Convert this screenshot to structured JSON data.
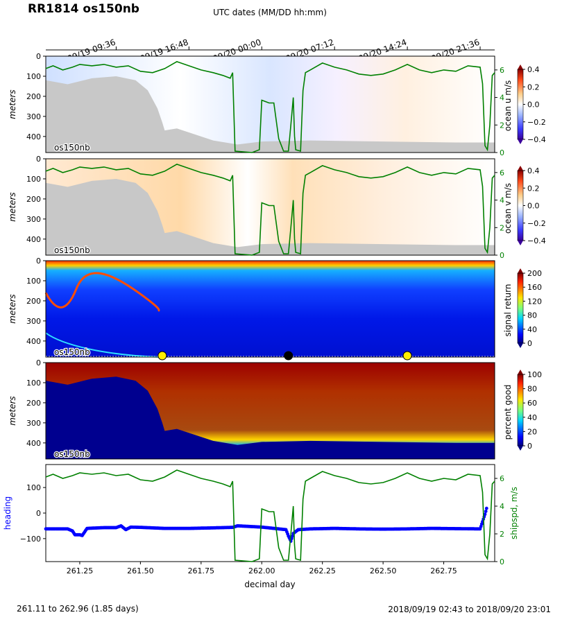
{
  "title": "RR1814 os150nb",
  "top_axis_label": "UTC dates (MM/DD hh:mm)",
  "top_ticks": [
    {
      "day": 261.4,
      "label": "09/19 09:36"
    },
    {
      "day": 261.7,
      "label": "09/19 16:48"
    },
    {
      "day": 262.0,
      "label": "09/20 00:00"
    },
    {
      "day": 262.3,
      "label": "09/20 07:12"
    },
    {
      "day": 262.6,
      "label": "09/20 14:24"
    },
    {
      "day": 262.9,
      "label": "09/20 21:36"
    }
  ],
  "footer_left": "261.11 to 262.96 (1.85 days)",
  "footer_right": "2018/09/19 02:43 to 2018/09/20 23:01",
  "panel_tag": "os150nb",
  "depth_label": "meters",
  "depth_ticks": [
    0,
    100,
    200,
    300,
    400
  ],
  "panels": [
    {
      "id": "u",
      "colorbar_label": "ocean u m/s",
      "cbar_ticks": [
        "0.4",
        "0.2",
        "0.0",
        "−0.2",
        "−0.4"
      ],
      "speed_ticks": [
        "0",
        "2",
        "4",
        "6"
      ]
    },
    {
      "id": "v",
      "colorbar_label": "ocean v m/s",
      "cbar_ticks": [
        "0.4",
        "0.2",
        "0.0",
        "−0.2",
        "−0.4"
      ],
      "speed_ticks": [
        "0",
        "2",
        "4",
        "6"
      ]
    },
    {
      "id": "amp",
      "colorbar_label": "signal return",
      "cbar_ticks": [
        "200",
        "160",
        "120",
        "80",
        "40",
        "0"
      ]
    },
    {
      "id": "pg",
      "colorbar_label": "percent good",
      "cbar_ticks": [
        "100",
        "80",
        "60",
        "40",
        "20",
        "0"
      ]
    }
  ],
  "bottom_panel": {
    "left_label": "heading",
    "right_label": "shipspd, m/s",
    "xlabel": "decimal day",
    "heading_ticks": [
      "100",
      "0",
      "−100"
    ],
    "speed_ticks": [
      "0",
      "2",
      "4",
      "6"
    ]
  },
  "colors": {
    "speed_line": "#008000",
    "heading_dots": "#0000ff",
    "bottom_mask": "#c8c8c8",
    "marker_yellow": "#ffee00",
    "marker_black": "#000000"
  },
  "chart_data": {
    "type": "line",
    "x_range": [
      261.11,
      262.96
    ],
    "x_ticks": [
      261.25,
      261.5,
      261.75,
      262.0,
      262.25,
      262.5,
      262.75
    ],
    "x_tick_labels": [
      "261.25",
      "261.50",
      "261.75",
      "262.00",
      "262.25",
      "262.50",
      "262.75"
    ],
    "depth_range": [
      0,
      480
    ],
    "speed_range": [
      0,
      7
    ],
    "heading_range": [
      -190,
      190
    ],
    "series": [
      {
        "name": "shipspd",
        "points": [
          [
            261.11,
            6.1
          ],
          [
            261.14,
            6.3
          ],
          [
            261.18,
            6.0
          ],
          [
            261.22,
            6.2
          ],
          [
            261.25,
            6.4
          ],
          [
            261.3,
            6.3
          ],
          [
            261.35,
            6.4
          ],
          [
            261.4,
            6.2
          ],
          [
            261.45,
            6.3
          ],
          [
            261.5,
            5.9
          ],
          [
            261.55,
            5.8
          ],
          [
            261.6,
            6.1
          ],
          [
            261.65,
            6.6
          ],
          [
            261.7,
            6.3
          ],
          [
            261.75,
            6.0
          ],
          [
            261.8,
            5.8
          ],
          [
            261.84,
            5.6
          ],
          [
            261.87,
            5.4
          ],
          [
            261.88,
            5.8
          ],
          [
            261.89,
            0.1
          ],
          [
            261.96,
            0.0
          ],
          [
            261.99,
            0.2
          ],
          [
            262.0,
            3.8
          ],
          [
            262.03,
            3.6
          ],
          [
            262.05,
            3.6
          ],
          [
            262.07,
            1.0
          ],
          [
            262.09,
            0.1
          ],
          [
            262.11,
            0.1
          ],
          [
            262.12,
            2.0
          ],
          [
            262.13,
            4.0
          ],
          [
            262.135,
            1.2
          ],
          [
            262.14,
            0.2
          ],
          [
            262.16,
            0.1
          ],
          [
            262.17,
            4.5
          ],
          [
            262.18,
            5.8
          ],
          [
            262.2,
            6.0
          ],
          [
            262.25,
            6.5
          ],
          [
            262.3,
            6.2
          ],
          [
            262.35,
            6.0
          ],
          [
            262.4,
            5.7
          ],
          [
            262.45,
            5.6
          ],
          [
            262.5,
            5.7
          ],
          [
            262.55,
            6.0
          ],
          [
            262.6,
            6.4
          ],
          [
            262.65,
            6.0
          ],
          [
            262.7,
            5.8
          ],
          [
            262.75,
            6.0
          ],
          [
            262.8,
            5.9
          ],
          [
            262.85,
            6.3
          ],
          [
            262.9,
            6.2
          ],
          [
            262.91,
            5.0
          ],
          [
            262.92,
            0.5
          ],
          [
            262.93,
            0.2
          ],
          [
            262.94,
            2.0
          ],
          [
            262.95,
            5.6
          ],
          [
            262.96,
            5.8
          ]
        ]
      },
      {
        "name": "heading",
        "points": [
          [
            261.11,
            -62
          ],
          [
            261.2,
            -62
          ],
          [
            261.22,
            -70
          ],
          [
            261.23,
            -85
          ],
          [
            261.25,
            -85
          ],
          [
            261.26,
            -88
          ],
          [
            261.28,
            -60
          ],
          [
            261.35,
            -57
          ],
          [
            261.4,
            -57
          ],
          [
            261.42,
            -50
          ],
          [
            261.44,
            -65
          ],
          [
            261.46,
            -55
          ],
          [
            261.5,
            -56
          ],
          [
            261.55,
            -58
          ],
          [
            261.6,
            -60
          ],
          [
            261.7,
            -60
          ],
          [
            261.8,
            -58
          ],
          [
            261.88,
            -56
          ],
          [
            261.9,
            -50
          ],
          [
            262.0,
            -55
          ],
          [
            262.1,
            -65
          ],
          [
            262.11,
            -90
          ],
          [
            262.12,
            -110
          ],
          [
            262.13,
            -80
          ],
          [
            262.15,
            -65
          ],
          [
            262.2,
            -62
          ],
          [
            262.3,
            -60
          ],
          [
            262.4,
            -62
          ],
          [
            262.5,
            -63
          ],
          [
            262.6,
            -62
          ],
          [
            262.7,
            -60
          ],
          [
            262.8,
            -61
          ],
          [
            262.9,
            -62
          ],
          [
            262.92,
            -5
          ],
          [
            262.93,
            30
          ]
        ]
      }
    ],
    "markers": [
      {
        "day": 261.59,
        "color": "yellow"
      },
      {
        "day": 262.11,
        "color": "black"
      },
      {
        "day": 262.6,
        "color": "yellow"
      }
    ]
  }
}
